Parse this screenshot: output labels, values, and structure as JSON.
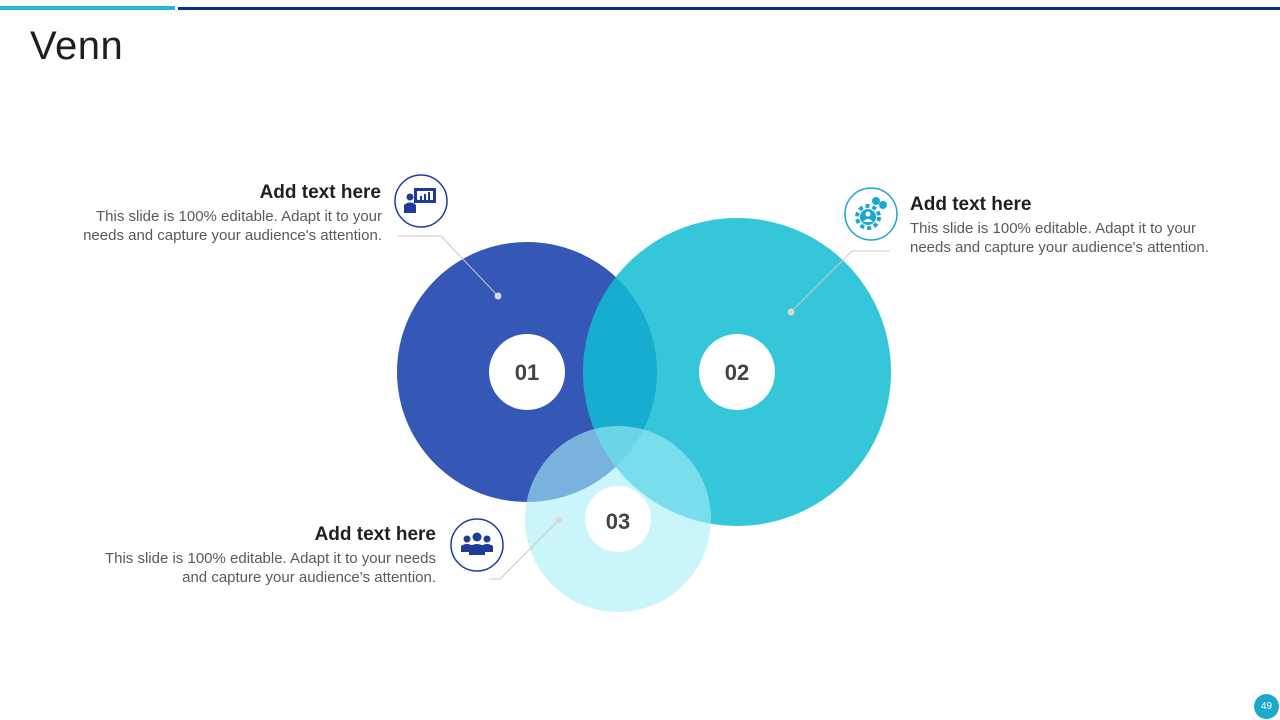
{
  "title": "Venn",
  "page_number": "49",
  "colors": {
    "circle_01": "#1f45ad",
    "circle_02": "#12bcd4",
    "circle_03": "#b7f1f9",
    "accent_bar_left": "#25b7d3",
    "accent_bar_right": "#0b2f8c",
    "icon_dark": "#1e3a9a",
    "icon_light": "#1aa8cc"
  },
  "circles": [
    {
      "label": "01"
    },
    {
      "label": "02"
    },
    {
      "label": "03"
    }
  ],
  "callouts": [
    {
      "heading": "Add text here",
      "line1": "This slide is 100% editable. Adapt it to your",
      "line2": "needs and capture your audience's attention.",
      "icon": "presentation-icon"
    },
    {
      "heading": "Add text here",
      "line1": "This slide is 100% editable. Adapt it to your",
      "line2": "needs and capture your audience's attention.",
      "icon": "gear-money-icon"
    },
    {
      "heading": "Add text here",
      "line1": "This slide is 100% editable. Adapt it to your needs",
      "line2": "and capture your audience's attention.",
      "icon": "team-icon"
    }
  ]
}
